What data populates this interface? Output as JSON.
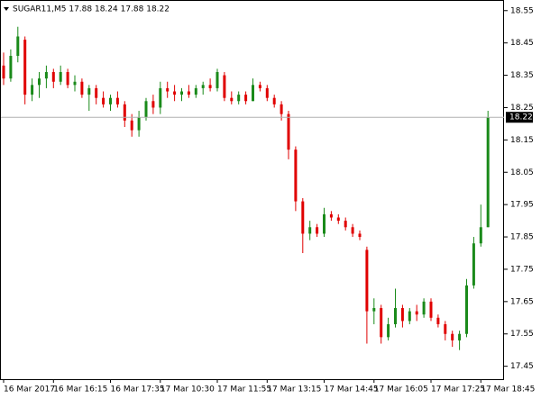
{
  "chart_data": {
    "type": "candlestick",
    "title": "SUGAR11,M5  17.88 18.24 17.88 18.22",
    "categories": [
      "16 Mar 2017",
      null,
      null,
      null,
      null,
      null,
      null,
      "16 Mar 16:15",
      null,
      null,
      null,
      null,
      null,
      null,
      null,
      "16 Mar 17:35",
      null,
      null,
      null,
      null,
      null,
      null,
      "17 Mar 10:30",
      null,
      null,
      null,
      null,
      null,
      null,
      null,
      "17 Mar 11:55",
      null,
      null,
      null,
      null,
      null,
      null,
      "17 Mar 13:15",
      null,
      null,
      null,
      null,
      null,
      null,
      null,
      "17 Mar 14:45",
      null,
      null,
      null,
      null,
      null,
      null,
      "17 Mar 16:05",
      null,
      null,
      null,
      null,
      null,
      null,
      null,
      "17 Mar 17:25",
      null,
      null,
      null,
      null,
      null,
      null,
      "17 Mar 18:45",
      null
    ],
    "open": [
      18.38,
      18.34,
      18.41,
      18.46,
      18.29,
      18.32,
      18.34,
      18.36,
      18.33,
      18.36,
      18.32,
      18.33,
      18.29,
      18.31,
      18.28,
      18.26,
      18.28,
      18.26,
      18.21,
      18.18,
      18.22,
      18.27,
      18.25,
      18.31,
      18.3,
      18.29,
      18.3,
      18.29,
      18.31,
      18.32,
      18.31,
      18.35,
      18.28,
      18.27,
      18.29,
      18.27,
      18.32,
      18.31,
      18.28,
      18.26,
      18.23,
      18.12,
      17.96,
      17.86,
      17.88,
      17.86,
      17.92,
      17.91,
      17.9,
      17.88,
      17.86,
      17.81,
      17.62,
      17.63,
      17.54,
      17.58,
      17.63,
      17.59,
      17.62,
      17.61,
      17.65,
      17.6,
      17.58,
      17.55,
      17.53,
      17.55,
      17.7,
      17.83,
      17.88
    ],
    "high": [
      18.42,
      18.43,
      18.5,
      18.47,
      18.34,
      18.36,
      18.38,
      18.37,
      18.38,
      18.37,
      18.35,
      18.34,
      18.32,
      18.32,
      18.3,
      18.29,
      18.3,
      18.27,
      18.23,
      18.24,
      18.28,
      18.29,
      18.33,
      18.33,
      18.32,
      18.31,
      18.32,
      18.32,
      18.33,
      18.34,
      18.37,
      18.36,
      18.3,
      18.3,
      18.3,
      18.34,
      18.33,
      18.32,
      18.29,
      18.27,
      18.24,
      18.13,
      17.97,
      17.9,
      17.89,
      17.94,
      17.93,
      17.92,
      17.91,
      17.89,
      17.87,
      17.82,
      17.66,
      17.64,
      17.6,
      17.69,
      17.64,
      17.63,
      17.64,
      17.66,
      17.66,
      17.61,
      17.59,
      17.56,
      17.56,
      17.72,
      17.85,
      17.95,
      18.24
    ],
    "low": [
      18.32,
      18.33,
      18.39,
      18.26,
      18.27,
      18.28,
      18.31,
      18.31,
      18.32,
      18.31,
      18.3,
      18.28,
      18.24,
      18.26,
      18.25,
      18.24,
      18.25,
      18.19,
      18.16,
      18.16,
      18.21,
      18.23,
      18.23,
      18.28,
      18.27,
      18.27,
      18.28,
      18.28,
      18.29,
      18.3,
      18.3,
      18.27,
      18.26,
      18.26,
      18.26,
      18.27,
      18.3,
      18.27,
      18.25,
      18.21,
      18.09,
      17.93,
      17.8,
      17.84,
      17.85,
      17.85,
      17.9,
      17.89,
      17.87,
      17.85,
      17.84,
      17.52,
      17.58,
      17.52,
      17.53,
      17.57,
      17.57,
      17.58,
      17.59,
      17.6,
      17.59,
      17.57,
      17.53,
      17.51,
      17.5,
      17.54,
      17.69,
      17.82,
      17.88
    ],
    "close": [
      18.34,
      18.41,
      18.47,
      18.29,
      18.32,
      18.34,
      18.36,
      18.33,
      18.36,
      18.32,
      18.33,
      18.29,
      18.31,
      18.28,
      18.26,
      18.28,
      18.26,
      18.21,
      18.18,
      18.22,
      18.27,
      18.25,
      18.31,
      18.3,
      18.29,
      18.3,
      18.29,
      18.31,
      18.32,
      18.31,
      18.36,
      18.28,
      18.27,
      18.29,
      18.27,
      18.32,
      18.31,
      18.28,
      18.26,
      18.23,
      18.12,
      17.96,
      17.86,
      17.88,
      17.86,
      17.92,
      17.91,
      17.9,
      17.88,
      17.86,
      17.85,
      17.62,
      17.63,
      17.54,
      17.58,
      17.63,
      17.59,
      17.62,
      17.61,
      17.65,
      17.6,
      17.58,
      17.55,
      17.53,
      17.55,
      17.7,
      17.83,
      17.88,
      18.22
    ],
    "up_color": "#1a8a1a",
    "down_color": "#e00000",
    "last_price": 18.22,
    "ylim": [
      17.41,
      18.58
    ],
    "yticks": [
      17.45,
      17.55,
      17.65,
      17.75,
      17.85,
      17.95,
      18.05,
      18.15,
      18.25,
      18.35,
      18.45,
      18.55
    ]
  }
}
